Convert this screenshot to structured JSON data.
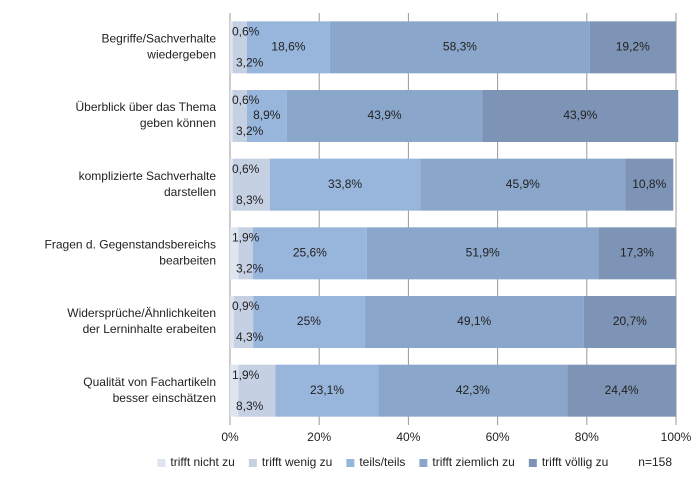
{
  "chart_data": {
    "type": "stacked-barh",
    "categories": [
      [
        "Begriffe/Sachverhalte",
        "wiedergeben"
      ],
      [
        "Überblick über das Thema",
        "geben können"
      ],
      [
        "komplizierte Sachverhalte",
        "darstellen"
      ],
      [
        "Fragen d. Gegenstandsbereichs",
        "bearbeiten"
      ],
      [
        "Widersprüche/Ähnlichkeiten",
        "der Lerninhalte erabeiten"
      ],
      [
        "Qualität von Fachartikeln",
        "besser einschätzen"
      ]
    ],
    "series": [
      {
        "name": "trifft nicht zu",
        "color": "#dfe5ef",
        "values": [
          0.6,
          0.6,
          0.6,
          1.9,
          0.9,
          1.9
        ],
        "value_labels": [
          "0,6%",
          "0,6%",
          "0,6%",
          "1,9%",
          "0,9%",
          "1,9%"
        ]
      },
      {
        "name": "trifft wenig zu",
        "color": "#c6d0e3",
        "values": [
          3.2,
          3.2,
          8.3,
          3.2,
          4.3,
          8.3
        ],
        "value_labels": [
          "3,2%",
          "3,2%",
          "8,3%",
          "3,2%",
          "4,3%",
          "8,3%"
        ]
      },
      {
        "name": "teils/teils",
        "color": "#98b5db",
        "values": [
          18.6,
          8.9,
          33.8,
          25.6,
          25,
          23.1
        ],
        "value_labels": [
          "18,6%",
          "8,9%",
          "33,8%",
          "25,6%",
          "25%",
          "23,1%"
        ]
      },
      {
        "name": "trifft ziemlich zu",
        "color": "#8aa7cb",
        "values": [
          58.3,
          43.9,
          45.9,
          51.9,
          49.1,
          42.3
        ],
        "value_labels": [
          "58,3%",
          "43,9%",
          "45,9%",
          "51,9%",
          "49,1%",
          "42,3%"
        ]
      },
      {
        "name": "trifft völlig zu",
        "color": "#7d94b6",
        "values": [
          19.2,
          43.9,
          10.8,
          17.3,
          20.7,
          24.4
        ],
        "value_labels": [
          "19,2%",
          "43,9%",
          "10,8%",
          "17,3%",
          "20,7%",
          "24,4%"
        ]
      }
    ],
    "xlim": [
      0,
      100
    ],
    "xticks": [
      {
        "value": 0,
        "label": "0%"
      },
      {
        "value": 20,
        "label": "20%"
      },
      {
        "value": 40,
        "label": "40%"
      },
      {
        "value": 60,
        "label": "60%"
      },
      {
        "value": 80,
        "label": "80%"
      },
      {
        "value": 100,
        "label": "100%"
      }
    ],
    "grid": true,
    "annotation": "n=158"
  }
}
